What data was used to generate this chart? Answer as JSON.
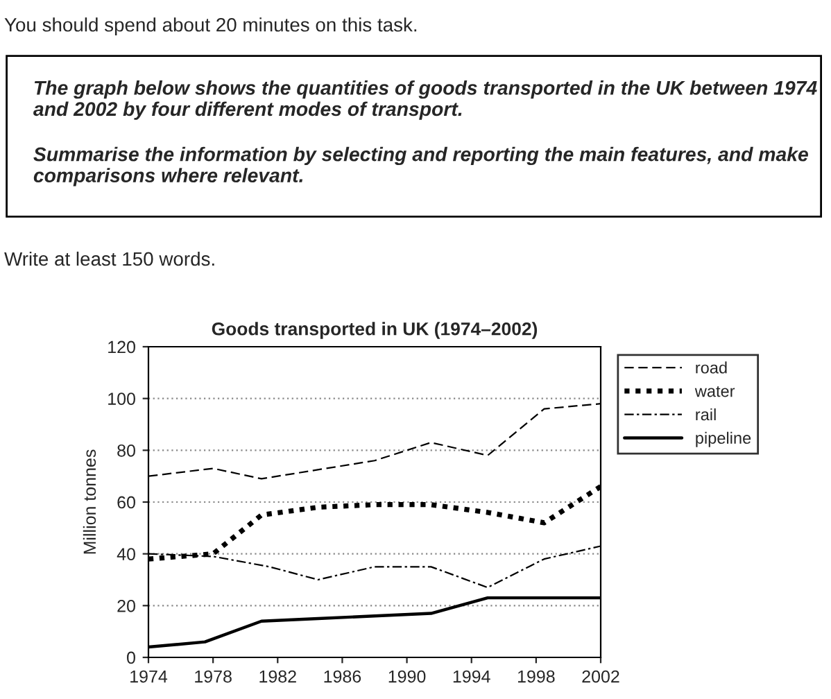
{
  "chart_data": {
    "type": "line",
    "title": "Goods transported in UK (1974–2002)",
    "ylabel": "Million tonnes",
    "annotations": [
      "You should spend about 20 minutes on this task.",
      "The graph below shows the quantities of goods transported in the UK between 1974 and 2002 by four different modes of transport.",
      "Summarise the information by selecting and reporting the main features, and make comparisons where relevant.",
      "Write at least 150 words."
    ],
    "xlim": [
      1974,
      2002
    ],
    "xticks": [
      1974,
      1978,
      1982,
      1986,
      1990,
      1994,
      1998,
      2002
    ],
    "ylim": [
      0,
      120
    ],
    "yticks": [
      0,
      20,
      40,
      60,
      80,
      100,
      120
    ],
    "grid": "y",
    "legend": "top right",
    "marker": "none",
    "series": [
      {
        "name": "road",
        "color": "#000000",
        "line_style": "dashed",
        "x": [
          1974,
          1978,
          1981,
          1985,
          1988,
          1991.5,
          1995,
          1998.5,
          2002
        ],
        "values": [
          70,
          73,
          69,
          73,
          76,
          83,
          78,
          96,
          98
        ]
      },
      {
        "name": "water",
        "color": "#000000",
        "line_style": "dotted",
        "x": [
          1974,
          1978,
          1981,
          1984.5,
          1988,
          1991.5,
          1995,
          1998.5,
          2002
        ],
        "values": [
          38,
          40,
          55,
          58,
          59,
          59,
          56,
          52,
          66
        ]
      },
      {
        "name": "rail",
        "color": "#000000",
        "line_style": "dashdot",
        "x": [
          1974,
          1978,
          1981.5,
          1984.5,
          1988,
          1991.5,
          1995,
          1998.5,
          2002
        ],
        "values": [
          40,
          39,
          35,
          30,
          35,
          35,
          27,
          38,
          43
        ]
      },
      {
        "name": "pipeline",
        "color": "#000000",
        "line_style": "solid",
        "x": [
          1974,
          1977.5,
          1981,
          1984.5,
          1988,
          1991.5,
          1995,
          1998.5,
          2002
        ],
        "values": [
          4,
          6,
          14,
          15,
          16,
          17,
          23,
          23,
          23
        ]
      }
    ]
  }
}
